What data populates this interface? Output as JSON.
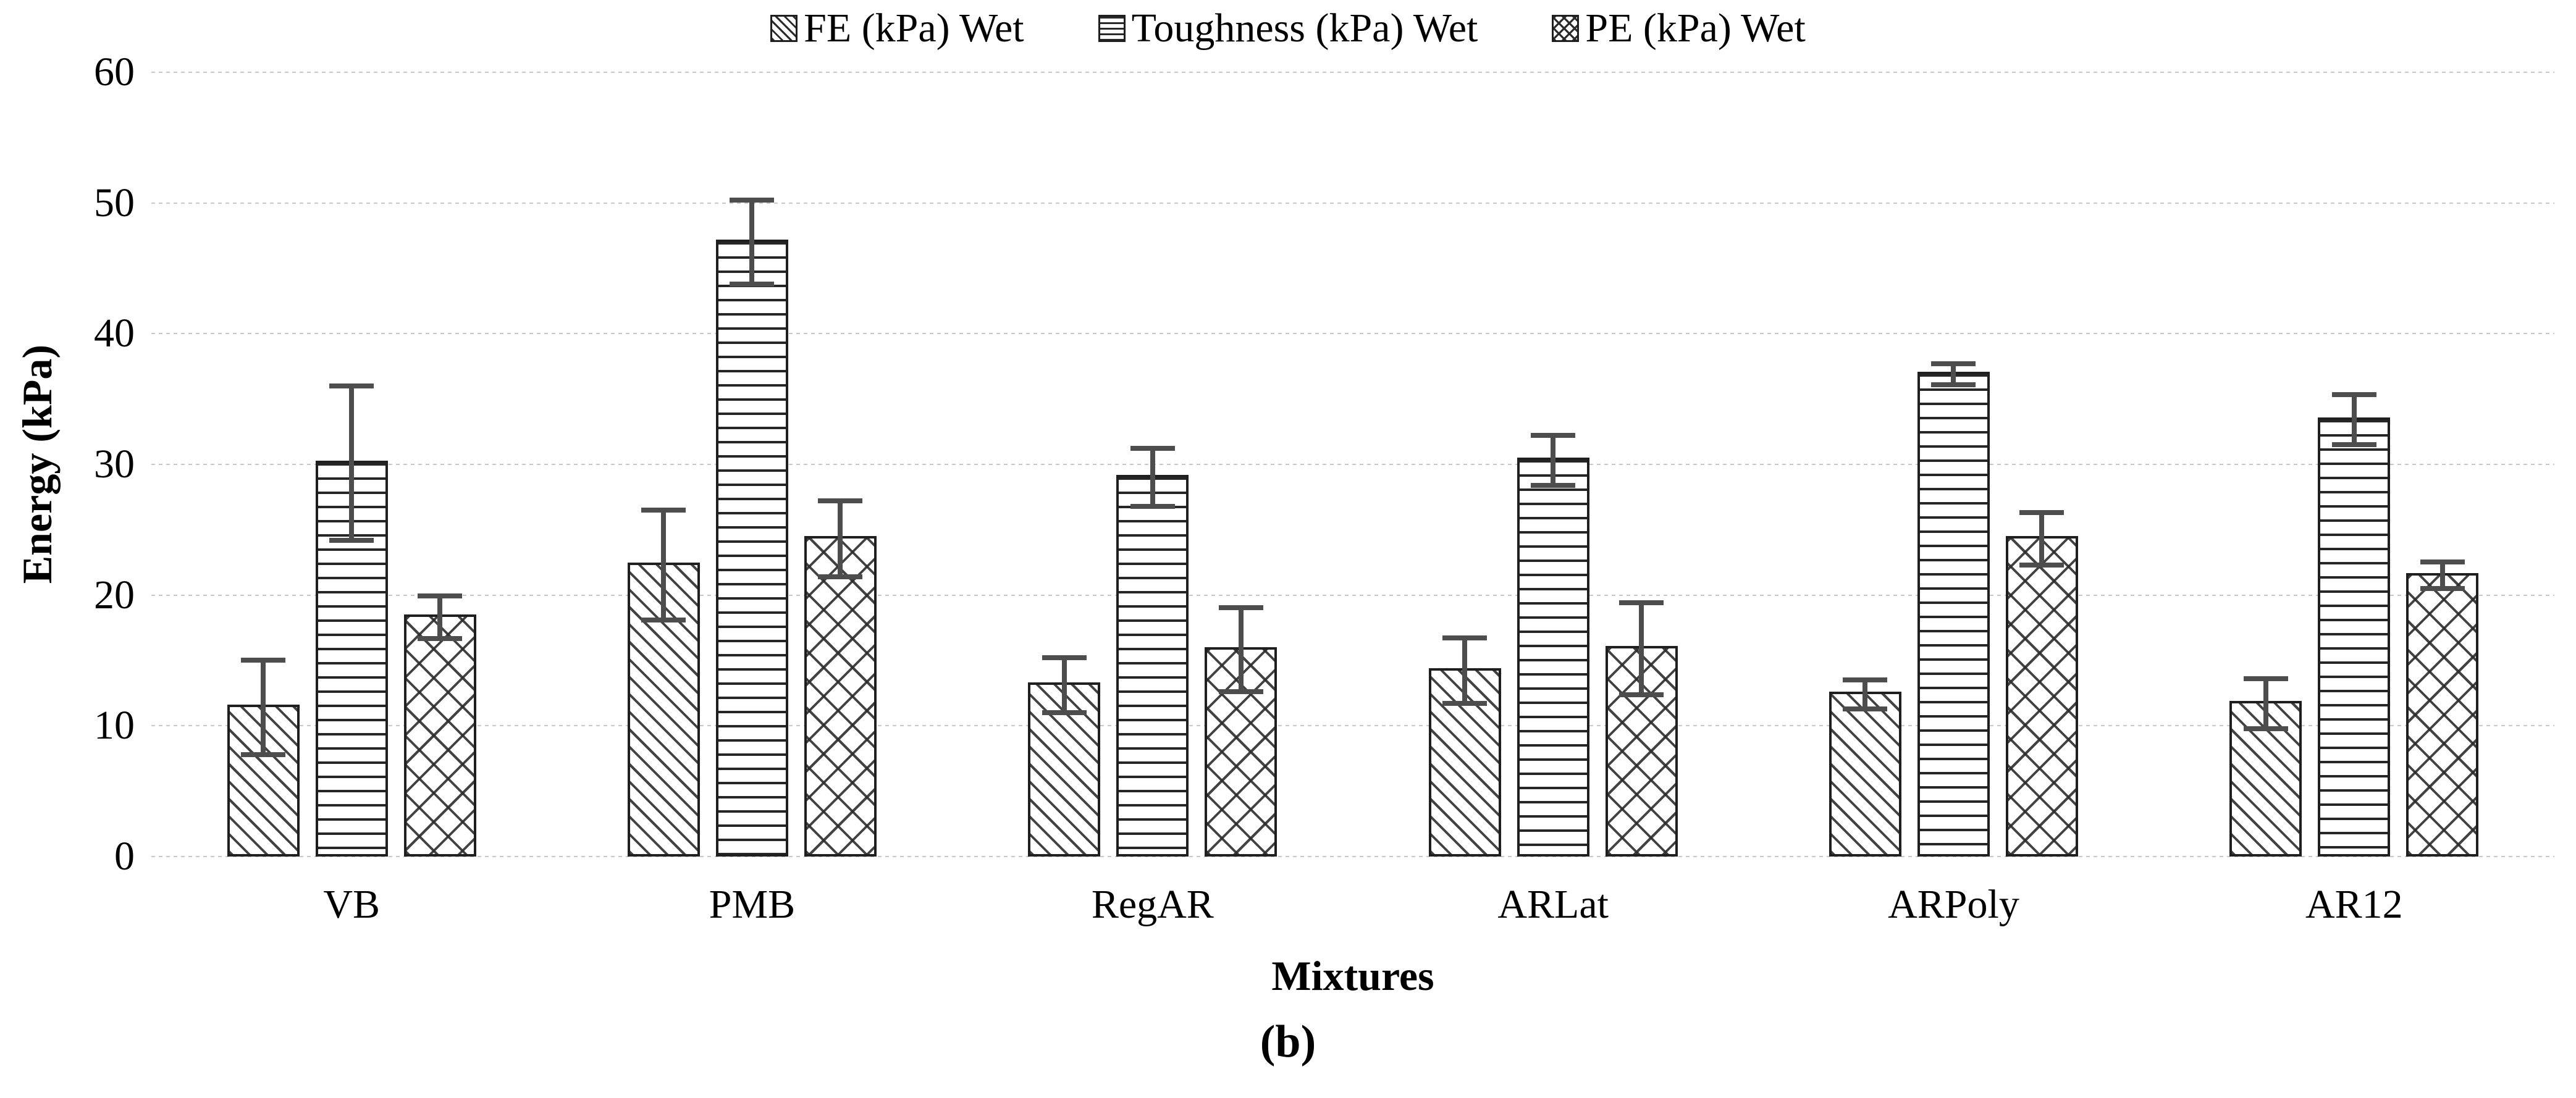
{
  "figure": {
    "caption": "(b)"
  },
  "chart_data": {
    "type": "bar",
    "xlabel": "Mixtures",
    "ylabel": "Energy (kPa)",
    "ylim": [
      0,
      60
    ],
    "yticks": [
      0,
      10,
      20,
      30,
      40,
      50,
      60
    ],
    "grid": true,
    "legend_position": "top-center",
    "categories": [
      "VB",
      "PMB",
      "RegAR",
      "ARLat",
      "ARPoly",
      "AR12"
    ],
    "series": [
      {
        "name": "FE (kPa) Wet",
        "key": "fe",
        "pattern": "diagonal-hatch",
        "values": [
          11.6,
          22.5,
          13.3,
          14.4,
          12.6,
          11.9
        ],
        "error": [
          3.8,
          4.4,
          2.3,
          2.7,
          1.3,
          2.1
        ]
      },
      {
        "name": "Toughness (kPa) Wet",
        "key": "toughness",
        "pattern": "horizontal-lines",
        "values": [
          30.3,
          47.2,
          29.2,
          30.5,
          37.1,
          33.6
        ],
        "error": [
          6.1,
          3.4,
          2.4,
          2.1,
          1.0,
          2.1
        ]
      },
      {
        "name": "PE (kPa) Wet",
        "key": "pe",
        "pattern": "diamond-crosshatch",
        "values": [
          18.5,
          24.5,
          16.0,
          16.1,
          24.5,
          21.7
        ],
        "error": [
          1.8,
          3.1,
          3.4,
          3.7,
          2.2,
          1.2
        ]
      }
    ],
    "colors": {
      "bar_outline": "#1f1f1f",
      "pattern_ink": "#2a2a2a",
      "error_bar": "#4d4d4d",
      "gridline": "#c7c7c7",
      "text": "#000000",
      "background": "#ffffff"
    }
  }
}
